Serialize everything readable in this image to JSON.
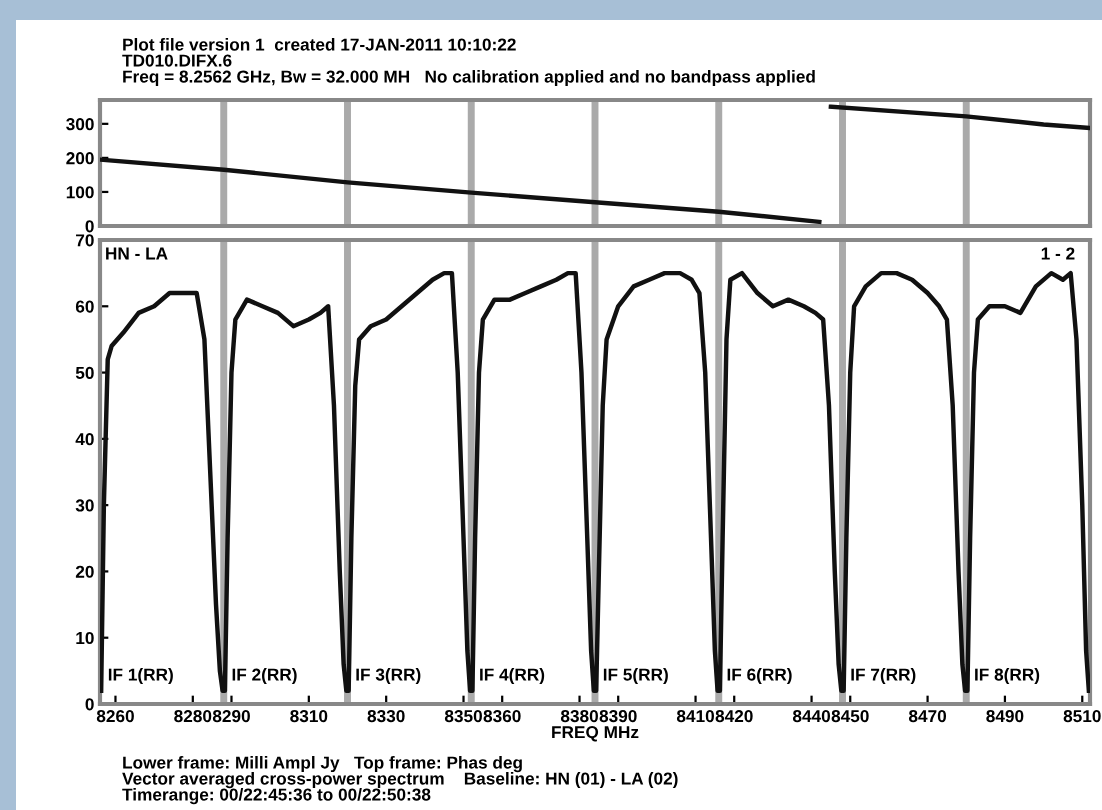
{
  "chart_data": [
    {
      "type": "line",
      "title": "Plot file version 1  created 17-JAN-2011 10:10:22",
      "subtitle": "TD010.DIFX.6\nFreq = 8.2562 GHz, Bw = 32.000 MH   No calibration applied and no bandpass applied",
      "x": [
        8256,
        8288,
        8320,
        8352,
        8384,
        8416,
        8442,
        8443,
        8445,
        8480,
        8500,
        8512
      ],
      "series": [
        {
          "color": "#111111",
          "values": [
            195,
            165,
            128,
            98,
            70,
            42,
            12,
            null,
            350,
            322,
            298,
            288
          ]
        }
      ],
      "xlim": [
        8256,
        8512
      ],
      "ylim": [
        0,
        370
      ],
      "yticks": [
        0,
        100,
        200,
        300
      ],
      "tick_labels": "y",
      "ref_lines": [
        {
          "axis": "x",
          "value": 8288,
          "color": "#aaaaaa"
        },
        {
          "axis": "x",
          "value": 8320,
          "color": "#aaaaaa"
        },
        {
          "axis": "x",
          "value": 8352,
          "color": "#aaaaaa"
        },
        {
          "axis": "x",
          "value": 8384,
          "color": "#aaaaaa"
        },
        {
          "axis": "x",
          "value": 8416,
          "color": "#aaaaaa"
        },
        {
          "axis": "x",
          "value": 8448,
          "color": "#aaaaaa"
        },
        {
          "axis": "x",
          "value": 8480,
          "color": "#aaaaaa"
        }
      ],
      "grid": false,
      "legend": false,
      "marker": "none",
      "line_style": "solid"
    },
    {
      "type": "line",
      "xlabel": "FREQ MHz",
      "x": [
        8256.3,
        8257,
        8258,
        8259,
        8262,
        8266,
        8270,
        8274,
        8278,
        8281,
        8283,
        8284.5,
        8286,
        8287,
        8287.7,
        8288.3,
        8289,
        8290,
        8291,
        8294,
        8298,
        8302,
        8306,
        8310,
        8313,
        8315,
        8316.5,
        8318,
        8319,
        8319.7,
        8320.3,
        8321,
        8322,
        8323,
        8326,
        8330,
        8334,
        8338,
        8342,
        8345,
        8347,
        8348.5,
        8350,
        8351,
        8351.7,
        8352.3,
        8353,
        8354,
        8355,
        8358,
        8362,
        8366,
        8370,
        8374,
        8377,
        8379,
        8380.5,
        8382,
        8383,
        8383.7,
        8384.3,
        8385,
        8386,
        8387,
        8390,
        8394,
        8398,
        8402,
        8406,
        8409,
        8411,
        8412.5,
        8414,
        8415,
        8415.7,
        8416.3,
        8417,
        8418,
        8419,
        8422,
        8426,
        8430,
        8434,
        8438,
        8441,
        8443,
        8444.5,
        8446,
        8447,
        8447.7,
        8448.3,
        8449,
        8450,
        8451,
        8454,
        8458,
        8462,
        8466,
        8470,
        8473,
        8475,
        8476.5,
        8478,
        8479,
        8479.7,
        8480.3,
        8481,
        8482,
        8483,
        8486,
        8490,
        8494,
        8498,
        8502,
        8505,
        8507,
        8508.5,
        8510,
        8511,
        8511.7
      ],
      "series": [
        {
          "color": "#111111",
          "values": [
            2,
            30,
            52,
            54,
            56,
            59,
            60,
            62,
            62,
            62,
            55,
            35,
            15,
            5,
            2,
            2,
            25,
            50,
            58,
            61,
            60,
            59,
            57,
            58,
            59,
            60,
            45,
            20,
            6,
            2,
            2,
            25,
            48,
            55,
            57,
            58,
            60,
            62,
            64,
            65,
            65,
            50,
            25,
            8,
            2,
            2,
            25,
            50,
            58,
            61,
            61,
            62,
            63,
            64,
            65,
            65,
            50,
            25,
            8,
            2,
            2,
            20,
            45,
            55,
            60,
            63,
            64,
            65,
            65,
            64,
            62,
            50,
            25,
            8,
            2,
            2,
            25,
            55,
            64,
            65,
            62,
            60,
            61,
            60,
            59,
            58,
            45,
            20,
            6,
            2,
            2,
            25,
            50,
            60,
            63,
            65,
            65,
            64,
            62,
            60,
            58,
            45,
            20,
            6,
            2,
            2,
            25,
            50,
            58,
            60,
            60,
            59,
            63,
            65,
            64,
            65,
            55,
            30,
            8,
            2
          ]
        }
      ],
      "xlim": [
        8256,
        8512
      ],
      "xticks": [
        8260,
        8280,
        8290,
        8310,
        8330,
        8350,
        8360,
        8380,
        8390,
        8410,
        8420,
        8440,
        8450,
        8470,
        8490,
        8510
      ],
      "ylim": [
        0,
        70
      ],
      "yticks": [
        0,
        10,
        20,
        30,
        40,
        50,
        60,
        70
      ],
      "ref_lines": [
        {
          "axis": "x",
          "value": 8288,
          "color": "#aaaaaa"
        },
        {
          "axis": "x",
          "value": 8320,
          "color": "#aaaaaa"
        },
        {
          "axis": "x",
          "value": 8352,
          "color": "#aaaaaa"
        },
        {
          "axis": "x",
          "value": 8384,
          "color": "#aaaaaa"
        },
        {
          "axis": "x",
          "value": 8416,
          "color": "#aaaaaa"
        },
        {
          "axis": "x",
          "value": 8448,
          "color": "#aaaaaa"
        },
        {
          "axis": "x",
          "value": 8480,
          "color": "#aaaaaa"
        }
      ],
      "annotations": [
        "HN - LA",
        "1 - 2",
        {
          "text": "IF 1(RR)",
          "x": 8258,
          "y": 3
        },
        {
          "text": "IF 2(RR)",
          "x": 8290,
          "y": 3
        },
        {
          "text": "IF 3(RR)",
          "x": 8322,
          "y": 3
        },
        {
          "text": "IF 4(RR)",
          "x": 8354,
          "y": 3
        },
        {
          "text": "IF 5(RR)",
          "x": 8386,
          "y": 3
        },
        {
          "text": "IF 6(RR)",
          "x": 8418,
          "y": 3
        },
        {
          "text": "IF 7(RR)",
          "x": 8450,
          "y": 3
        },
        {
          "text": "IF 8(RR)",
          "x": 8482,
          "y": 3
        },
        "Lower frame: Milli Ampl Jy   Top frame: Phas deg",
        "Vector averaged cross-power spectrum    Baseline: HN (01) - LA (02)",
        "Timerange: 00/22:45:36 to 00/22:50:38"
      ],
      "grid": false,
      "legend": false,
      "marker": "none",
      "line_style": "solid"
    }
  ]
}
